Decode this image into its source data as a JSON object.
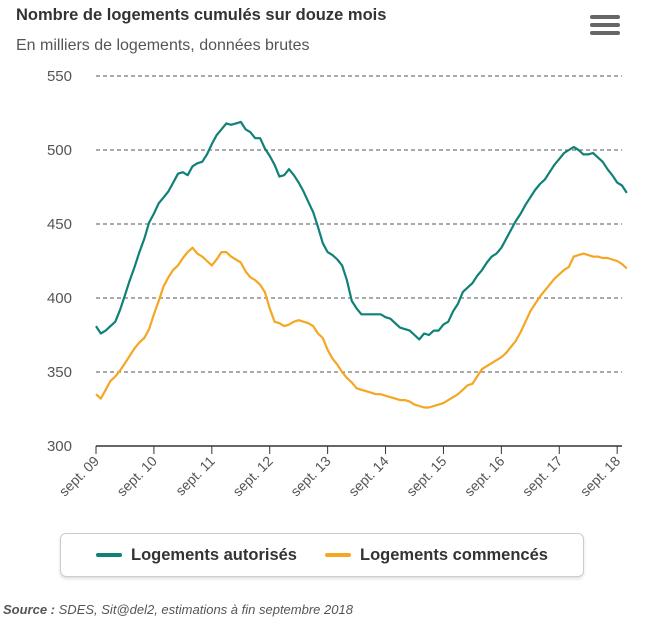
{
  "header": {
    "title": "Nombre de logements cumulés sur douze mois",
    "subtitle": "En milliers de logements, données brutes"
  },
  "source": {
    "label": "Source :",
    "text": "SDES, Sit@del2, estimations à fin septembre 2018"
  },
  "colors": {
    "autorises": "#0f8178",
    "commences": "#f5a623"
  },
  "icons": {
    "menu": "hamburger-menu-icon"
  },
  "chart_data": {
    "type": "line",
    "title": "Nombre de logements cumulés sur douze mois",
    "subtitle": "En milliers de logements, données brutes",
    "ylim": [
      300,
      550
    ],
    "yticks": [
      300,
      350,
      400,
      450,
      500,
      550
    ],
    "xlim": [
      0,
      109
    ],
    "xticks": [
      {
        "label": "sept. 09",
        "pos": 0
      },
      {
        "label": "sept. 10",
        "pos": 12
      },
      {
        "label": "sept. 11",
        "pos": 24
      },
      {
        "label": "sept. 12",
        "pos": 36
      },
      {
        "label": "sept. 13",
        "pos": 48
      },
      {
        "label": "sept. 14",
        "pos": 60
      },
      {
        "label": "sept. 15",
        "pos": 72
      },
      {
        "label": "sept. 16",
        "pos": 84
      },
      {
        "label": "sept. 17",
        "pos": 96
      },
      {
        "label": "sept. 18",
        "pos": 108
      }
    ],
    "grid": true,
    "legend_position": "bottom",
    "series": [
      {
        "name": "Logements autorisés",
        "color": "#0f8178",
        "values": [
          381,
          376,
          378,
          381,
          384,
          392,
          402,
          412,
          421,
          431,
          440,
          451,
          457,
          464,
          468,
          472,
          478,
          484,
          485,
          483,
          489,
          491,
          492,
          497,
          504,
          510,
          514,
          518,
          517,
          518,
          519,
          514,
          512,
          508,
          508,
          501,
          496,
          490,
          482,
          483,
          487,
          483,
          478,
          472,
          465,
          458,
          448,
          437,
          431,
          429,
          426,
          422,
          412,
          398,
          393,
          389,
          389,
          389,
          389,
          389,
          387,
          386,
          383,
          380,
          379,
          378,
          375,
          372,
          376,
          375,
          378,
          378,
          382,
          384,
          391,
          396,
          404,
          407,
          410,
          415,
          419,
          424,
          428,
          430,
          434,
          440,
          446,
          452,
          457,
          463,
          468,
          473,
          477,
          480,
          485,
          490,
          494,
          498,
          500,
          502,
          500,
          497,
          497,
          498,
          495,
          492,
          487,
          483,
          478,
          476,
          471
        ]
      },
      {
        "name": "Logements commencés",
        "color": "#f5a623",
        "values": [
          335,
          332,
          338,
          344,
          347,
          351,
          356,
          361,
          366,
          370,
          373,
          379,
          389,
          398,
          408,
          414,
          419,
          422,
          427,
          431,
          434,
          430,
          428,
          425,
          422,
          426,
          431,
          431,
          428,
          426,
          424,
          418,
          414,
          412,
          409,
          404,
          393,
          384,
          383,
          381,
          382,
          384,
          385,
          384,
          383,
          381,
          376,
          373,
          365,
          359,
          355,
          350,
          346,
          343,
          339,
          338,
          337,
          336,
          335,
          335,
          334,
          333,
          332,
          331,
          331,
          330,
          328,
          327,
          326,
          326,
          327,
          328,
          329,
          331,
          333,
          335,
          338,
          341,
          342,
          347,
          352,
          354,
          356,
          358,
          360,
          363,
          367,
          371,
          377,
          384,
          391,
          396,
          401,
          405,
          409,
          413,
          416,
          419,
          421,
          428,
          429,
          430,
          429,
          428,
          428,
          427,
          427,
          426,
          425,
          423,
          420
        ]
      }
    ]
  }
}
